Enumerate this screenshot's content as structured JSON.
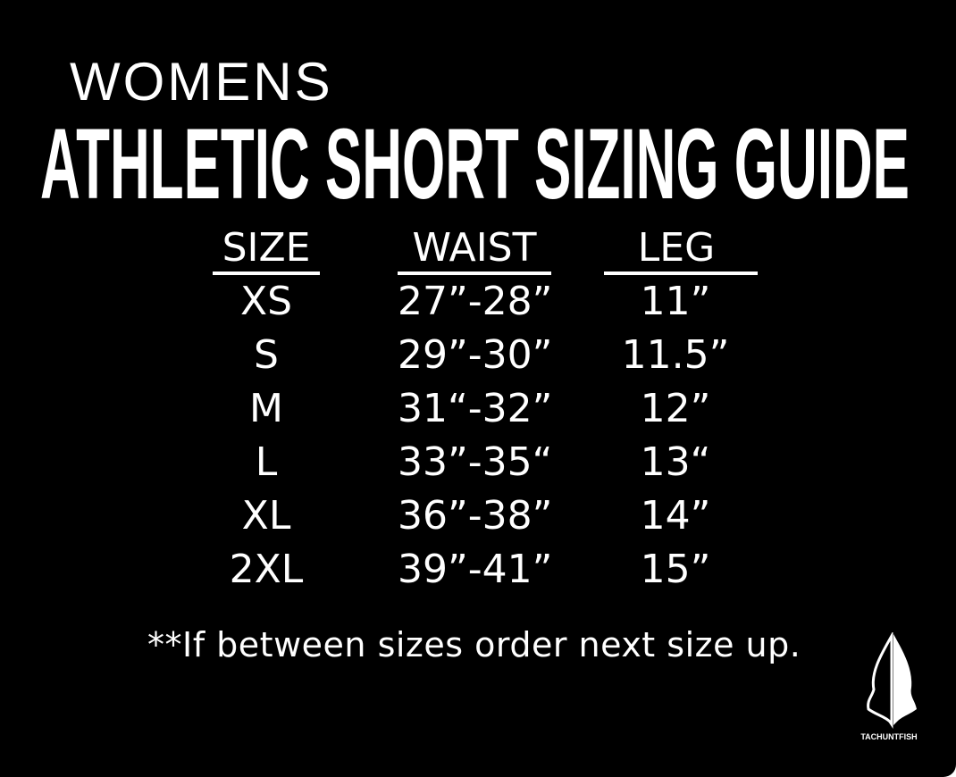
{
  "subtitle": "WOMENS",
  "title": "ATHLETIC SHORT SIZING GUIDE",
  "table": {
    "headers": [
      "SIZE",
      "WAIST",
      "LEG"
    ],
    "rows": [
      [
        "XS",
        "27”-28”",
        "11”"
      ],
      [
        "S",
        "29”-30”",
        "11.5”"
      ],
      [
        "M",
        "31“-32”",
        "12”"
      ],
      [
        "L",
        "33”-35“",
        "13“"
      ],
      [
        "XL",
        "36”-38”",
        "14”"
      ],
      [
        "2XL",
        "39”-41”",
        "15”"
      ]
    ]
  },
  "footnote": "**If between sizes order next size up.",
  "logo": {
    "text": "TACHUNTFISH",
    "icon": "arrowhead-icon"
  },
  "colors": {
    "background": "#000000",
    "text": "#ffffff"
  }
}
